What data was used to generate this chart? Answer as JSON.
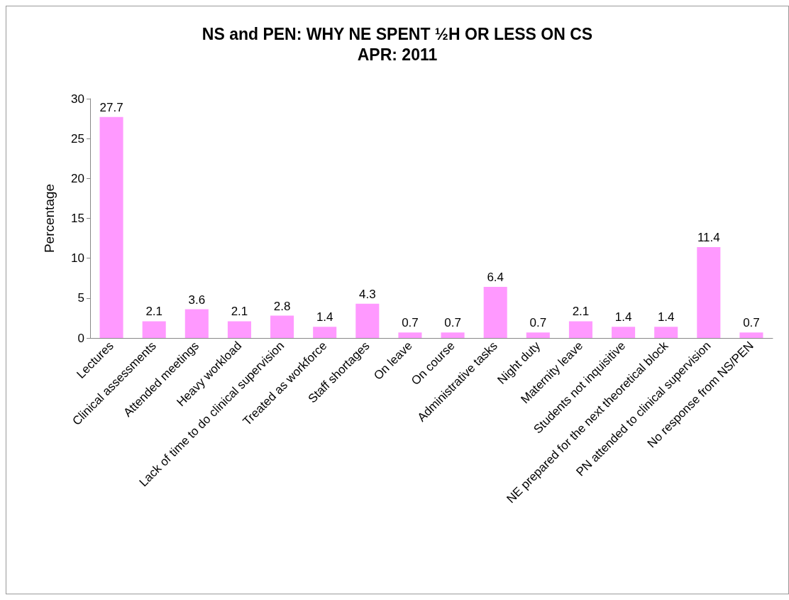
{
  "chart_data": {
    "type": "bar",
    "title": "NS and PEN: WHY NE SPENT ½H OR LESS ON CS",
    "subtitle": "APR: 2011",
    "ylabel": "Percentage",
    "categories": [
      "Lectures",
      "Clinical assessments",
      "Attended meetings",
      "Heavy workload",
      "Lack of time to do clinical supervision",
      "Treated as workforce",
      "Staff shortages",
      "On leave",
      "On course",
      "Administrative tasks",
      "Night duty",
      "Maternity leave",
      "Students not inquisitive",
      "NE prepared for the next theoretical block",
      "PN attended to clinical supervision",
      "No response from NS/PEN"
    ],
    "values": [
      27.7,
      2.1,
      3.6,
      2.1,
      2.8,
      1.4,
      4.3,
      0.7,
      0.7,
      6.4,
      0.7,
      2.1,
      1.4,
      1.4,
      11.4,
      0.7
    ],
    "color": "#ff99ff",
    "ylim": [
      0,
      30
    ],
    "yticks": [
      0,
      5,
      10,
      15,
      20,
      25,
      30
    ],
    "grid": false,
    "data_labels": true
  }
}
